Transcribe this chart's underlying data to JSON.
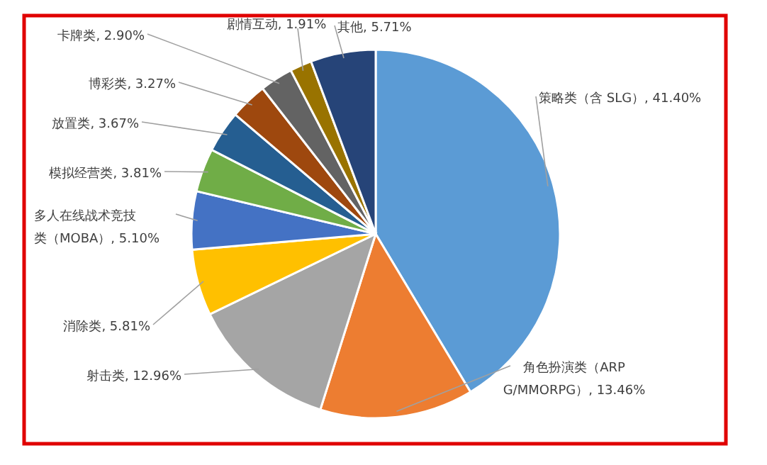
{
  "chart_data": {
    "type": "pie",
    "categories": [
      "策略类（含 SLG）",
      "角色扮演类（ARPG/MMORPG）",
      "射击类",
      "消除类",
      "多人在线战术竞技类（MOBA）",
      "模拟经营类",
      "放置类",
      "博彩类",
      "卡牌类",
      "剧情互动",
      "其他"
    ],
    "values": [
      41.4,
      13.46,
      12.96,
      5.81,
      5.1,
      3.81,
      3.67,
      3.27,
      2.9,
      1.91,
      5.71
    ],
    "value_labels": [
      "41.40%",
      "13.46%",
      "12.96%",
      "5.81%",
      "5.10%",
      "3.81%",
      "3.67%",
      "3.27%",
      "2.90%",
      "1.91%",
      "5.71%"
    ],
    "colors": [
      "#5b9bd5",
      "#ed7d31",
      "#a5a5a5",
      "#ffc000",
      "#4472c4",
      "#70ad47",
      "#255e91",
      "#9e480e",
      "#636363",
      "#997300",
      "#264478"
    ],
    "legend": false
  }
}
